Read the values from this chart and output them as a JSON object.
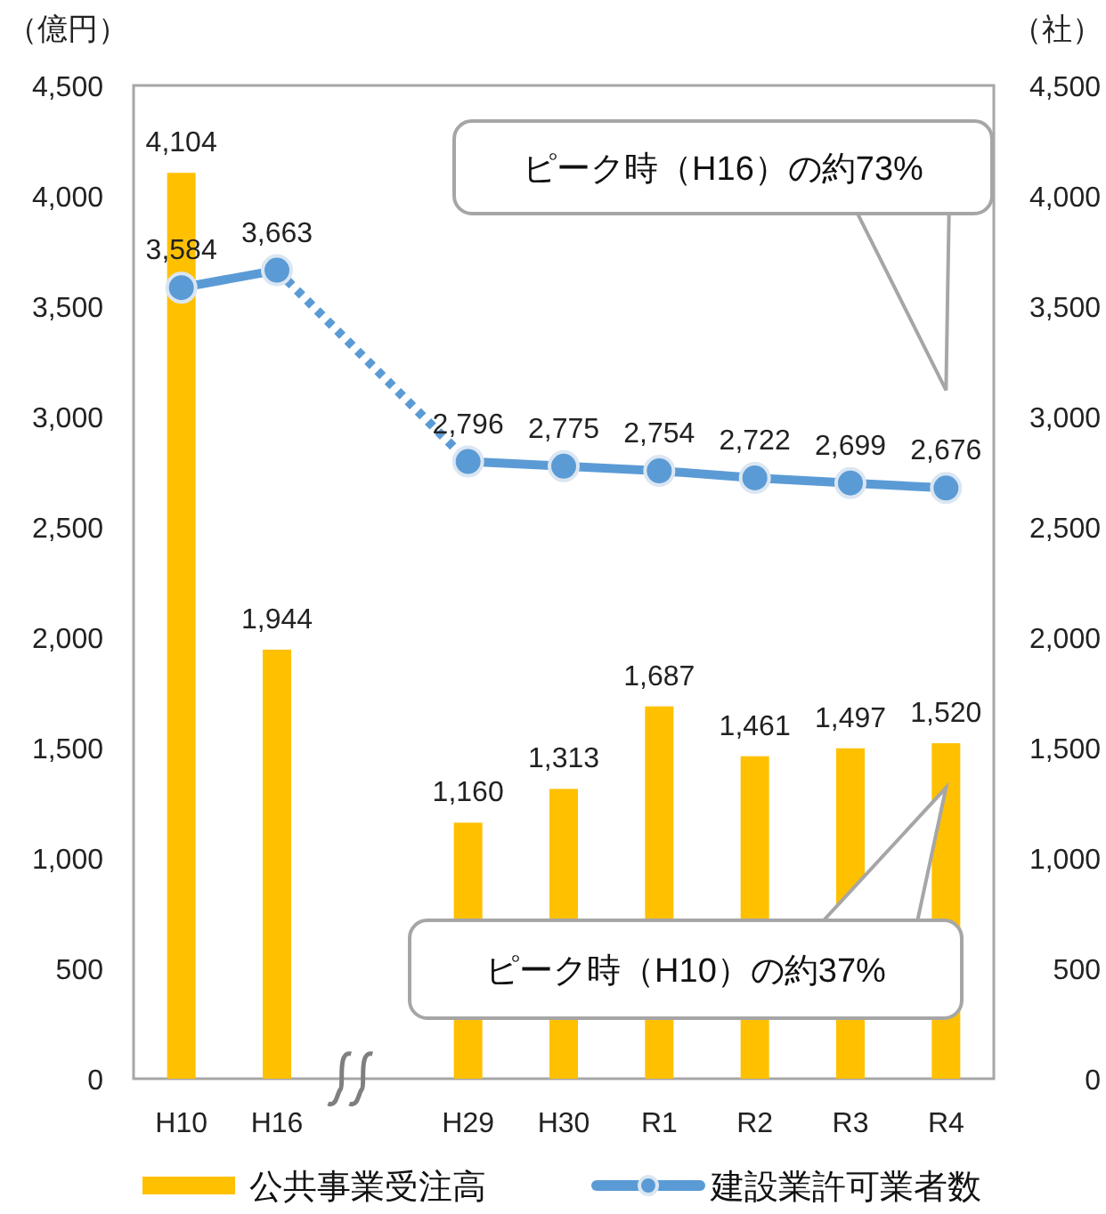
{
  "chart_data": {
    "type": "bar",
    "ylabel": "（億円）",
    "y2label": "（社）",
    "categories": [
      "H10",
      "H16",
      null,
      "H29",
      "H30",
      "R1",
      "R2",
      "R3",
      "R4"
    ],
    "series": [
      {
        "name": "公共事業受注高",
        "color": "#ffc000",
        "values": [
          4104,
          1944,
          null,
          1160,
          1313,
          1687,
          1461,
          1497,
          1520
        ],
        "value_labels": [
          "4,104",
          "1,944",
          null,
          "1,160",
          "1,313",
          "1,687",
          "1,461",
          "1,497",
          "1,520"
        ]
      },
      {
        "name": "建設業許可業者数",
        "type": "line",
        "axis": "y2",
        "color": "#5b9bd5",
        "marker": "circle",
        "values": [
          3584,
          3663,
          null,
          2796,
          2775,
          2754,
          2722,
          2699,
          2676
        ],
        "value_labels": [
          "3,584",
          "3,663",
          null,
          "2,796",
          "2,775",
          "2,754",
          "2,722",
          "2,699",
          "2,676"
        ]
      }
    ],
    "ylim": [
      0,
      4500
    ],
    "yticks": [
      0,
      500,
      {
        "value": 1000,
        "label": "1,000"
      },
      {
        "value": 1500,
        "label": "1,500"
      },
      {
        "value": 2000,
        "label": "2,000"
      },
      {
        "value": 2500,
        "label": "2,500"
      },
      {
        "value": 3000,
        "label": "3,000"
      },
      {
        "value": 3500,
        "label": "3,500"
      },
      {
        "value": 4000,
        "label": "4,000"
      },
      {
        "value": 4500,
        "label": "4,500"
      }
    ],
    "y2lim": [
      0,
      4500
    ],
    "y2ticks": [
      0,
      500,
      {
        "value": 1000,
        "label": "1,000"
      },
      {
        "value": 1500,
        "label": "1,500"
      },
      {
        "value": 2000,
        "label": "2,000"
      },
      {
        "value": 2500,
        "label": "2,500"
      },
      {
        "value": 3000,
        "label": "3,000"
      },
      {
        "value": 3500,
        "label": "3,500"
      },
      {
        "value": 4000,
        "label": "4,000"
      },
      {
        "value": 4500,
        "label": "4,500"
      }
    ],
    "grid": false,
    "legend": "bottom",
    "annotations": [
      "ピーク時（H16）の約73%",
      "ピーク時（H10）の約37%"
    ]
  }
}
